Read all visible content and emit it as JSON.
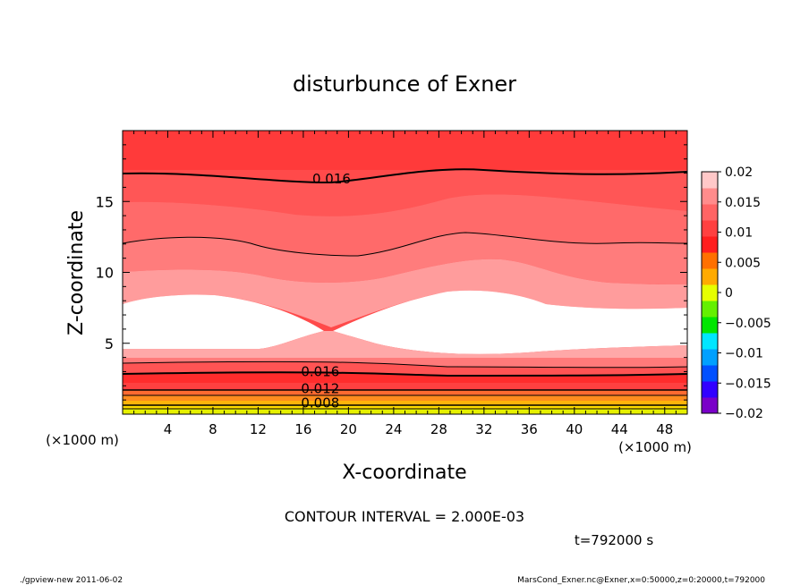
{
  "chart_data": {
    "type": "contour",
    "title": "disturbunce of Exner",
    "xlabel": "X-coordinate",
    "ylabel": "Z-coordinate",
    "x_unit_left": "(×1000 m)",
    "x_unit_right": "(×1000 m)",
    "xlim": [
      0,
      50
    ],
    "ylim": [
      0,
      20
    ],
    "x_ticks": [
      4,
      8,
      12,
      16,
      20,
      24,
      28,
      32,
      36,
      40,
      44,
      48
    ],
    "y_ticks": [
      5,
      10,
      15
    ],
    "contour_interval_text": "CONTOUR INTERVAL = 2.000E-03",
    "time_text": "t=792000 s",
    "contour_labels": [
      {
        "text": "0.016",
        "x": 18.5,
        "z": 16.6
      },
      {
        "text": "0.016",
        "x": 17.5,
        "z": 3.0
      },
      {
        "text": "0.012",
        "x": 17.5,
        "z": 1.8
      },
      {
        "text": "0.008",
        "x": 17.5,
        "z": 0.8
      }
    ],
    "colorbar": {
      "colors": [
        "#7a00c8",
        "#3200ff",
        "#0050ff",
        "#00a0ff",
        "#00e6ff",
        "#00e600",
        "#64f000",
        "#e6ff00",
        "#ffaa00",
        "#ff7000",
        "#ff1e1e",
        "#ff4040",
        "#ff6464",
        "#ff8c8c",
        "#ffc8c8"
      ],
      "tick_labels": [
        "0.02",
        "0.015",
        "0.01",
        "0.005",
        "0",
        "−0.005",
        "−0.01",
        "−0.015",
        "−0.02"
      ]
    },
    "bands": [
      {
        "color": "#ff5050",
        "z_top": 20,
        "z_bot": 17
      },
      {
        "color": "#ff5454",
        "z_top": 17,
        "z_bot": 15
      },
      {
        "color": "#ff6464",
        "z_top": 15,
        "z_bot": 12
      },
      {
        "color": "#ff7878",
        "z_top": 12,
        "z_bot": 10
      },
      {
        "color": "#ff9a9a",
        "z_top": 10,
        "z_bot": 7.5
      },
      {
        "color": "#ffffff",
        "z_top": 7.5,
        "z_bot": 4.5
      },
      {
        "color": "#ffa0a0",
        "z_top": 4.5,
        "z_bot": 4.1
      },
      {
        "color": "#ff7474",
        "z_top": 4.1,
        "z_bot": 3.5
      },
      {
        "color": "#ff5252",
        "z_top": 3.5,
        "z_bot": 3.0
      },
      {
        "color": "#ff2a2a",
        "z_top": 3.0,
        "z_bot": 2.6
      },
      {
        "color": "#ff3c3c",
        "z_top": 2.6,
        "z_bot": 2.2
      },
      {
        "color": "#ff5a3c",
        "z_top": 2.2,
        "z_bot": 1.8
      },
      {
        "color": "#ff7a28",
        "z_top": 1.8,
        "z_bot": 1.4
      },
      {
        "color": "#ff9a14",
        "z_top": 1.4,
        "z_bot": 1.0
      },
      {
        "color": "#ffc800",
        "z_top": 1.0,
        "z_bot": 0.6
      },
      {
        "color": "#e6f000",
        "z_top": 0.6,
        "z_bot": 0
      }
    ]
  },
  "footer": {
    "left": "./gpview-new  2011-06-02",
    "right": "MarsCond_Exner.nc@Exner,x=0:50000,z=0:20000,t=792000"
  }
}
